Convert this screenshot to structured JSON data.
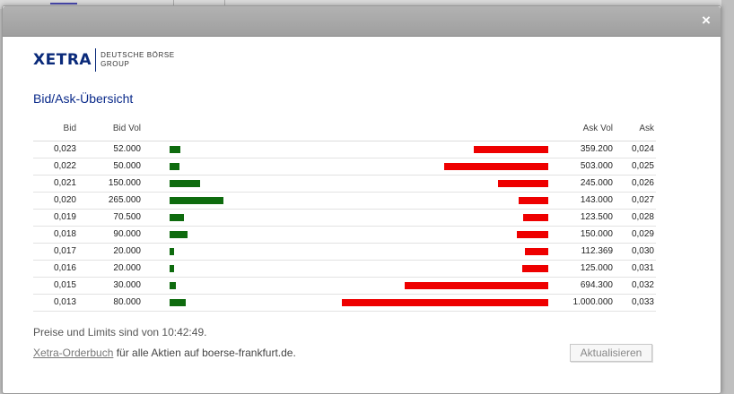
{
  "dialog": {
    "close_label": "×"
  },
  "logo": {
    "brand": "XETRA",
    "line1": "DEUTSCHE BÖRSE",
    "line2": "GROUP"
  },
  "title": "Bid/Ask-Übersicht",
  "table": {
    "headers": {
      "bid": "Bid",
      "bid_vol": "Bid Vol",
      "ask_vol": "Ask Vol",
      "ask": "Ask"
    },
    "rows": [
      {
        "bid": "0,023",
        "bid_vol": "52.000",
        "ask_vol": "359.200",
        "ask": "0,024",
        "bid_qty": 52000,
        "ask_qty": 359200
      },
      {
        "bid": "0,022",
        "bid_vol": "50.000",
        "ask_vol": "503.000",
        "ask": "0,025",
        "bid_qty": 50000,
        "ask_qty": 503000
      },
      {
        "bid": "0,021",
        "bid_vol": "150.000",
        "ask_vol": "245.000",
        "ask": "0,026",
        "bid_qty": 150000,
        "ask_qty": 245000
      },
      {
        "bid": "0,020",
        "bid_vol": "265.000",
        "ask_vol": "143.000",
        "ask": "0,027",
        "bid_qty": 265000,
        "ask_qty": 143000
      },
      {
        "bid": "0,019",
        "bid_vol": "70.500",
        "ask_vol": "123.500",
        "ask": "0,028",
        "bid_qty": 70500,
        "ask_qty": 123500
      },
      {
        "bid": "0,018",
        "bid_vol": "90.000",
        "ask_vol": "150.000",
        "ask": "0,029",
        "bid_qty": 90000,
        "ask_qty": 150000
      },
      {
        "bid": "0,017",
        "bid_vol": "20.000",
        "ask_vol": "112.369",
        "ask": "0,030",
        "bid_qty": 20000,
        "ask_qty": 112369
      },
      {
        "bid": "0,016",
        "bid_vol": "20.000",
        "ask_vol": "125.000",
        "ask": "0,031",
        "bid_qty": 20000,
        "ask_qty": 125000
      },
      {
        "bid": "0,015",
        "bid_vol": "30.000",
        "ask_vol": "694.300",
        "ask": "0,032",
        "bid_qty": 30000,
        "ask_qty": 694300
      },
      {
        "bid": "0,013",
        "bid_vol": "80.000",
        "ask_vol": "1.000.000",
        "ask": "0,033",
        "bid_qty": 80000,
        "ask_qty": 1000000
      }
    ]
  },
  "footnote": "Preise und Limits sind von 10:42:49.",
  "footer": {
    "link": "Xetra-Orderbuch",
    "text": " für alle Aktien auf boerse-frankfurt.de."
  },
  "refresh_label": "Aktualisieren",
  "colors": {
    "bid_bar": "#0e6b0e",
    "ask_bar": "#ee0000",
    "title": "#0a2a8a"
  }
}
